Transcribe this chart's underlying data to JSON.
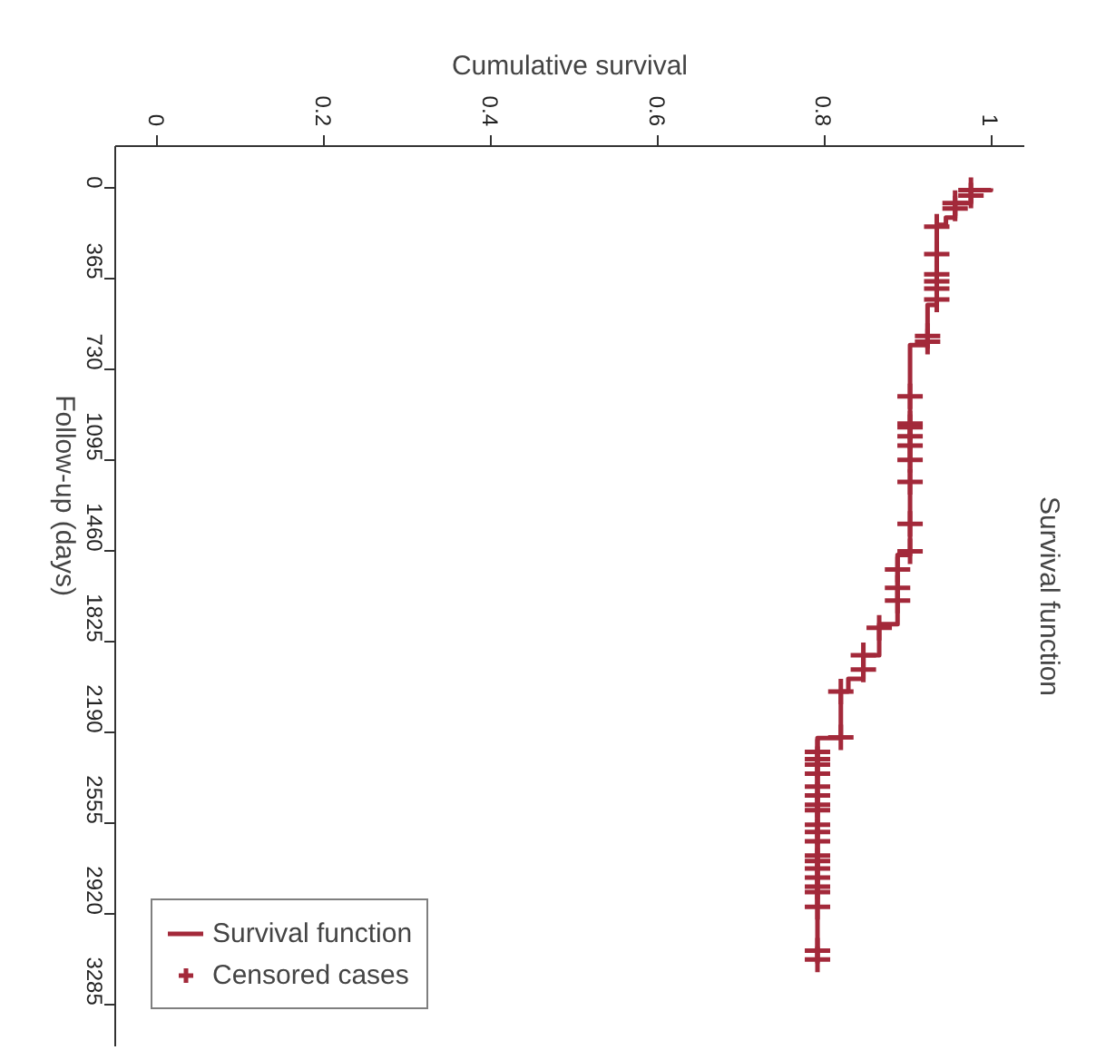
{
  "chart_data": {
    "type": "step",
    "orientation": "horizontal",
    "title": "Survival function",
    "xlabel": "Cumulative survival",
    "ylabel": "Follow-up (days)",
    "xlim": [
      -0.05,
      1.04
    ],
    "xticks": [
      0,
      0.2,
      0.4,
      0.6,
      0.8,
      1
    ],
    "ylim": [
      3450,
      -170
    ],
    "yticks": [
      0,
      365,
      730,
      1095,
      1460,
      1825,
      2190,
      2555,
      2920,
      3285
    ],
    "grid": false,
    "legend": "bottom left",
    "series": [
      {
        "name": "Survival function",
        "color": "#a3293a",
        "x": [
          0,
          7,
          59,
          117,
          147,
          469,
          630,
          1474,
          1752,
          1877,
          1972,
          2023,
          2210,
          3101
        ],
        "values": [
          1,
          0.976,
          0.957,
          0.946,
          0.935,
          0.924,
          0.903,
          0.888,
          0.866,
          0.847,
          0.829,
          0.82,
          0.792,
          0.792
        ]
      },
      {
        "name": "Censored cases",
        "type": "scatter",
        "marker": "cross",
        "color": "#a3293a",
        "x": [
          7,
          29,
          59,
          81,
          154,
          264,
          345,
          374,
          403,
          447,
          594,
          616,
          836,
          946,
          960,
          997,
          1034,
          1092,
          1180,
          1349,
          1459,
          1532,
          1606,
          1657,
          1767,
          1877,
          1935,
          2023,
          2207,
          2266,
          2295,
          2317,
          2353,
          2405,
          2441,
          2478,
          2500,
          2559,
          2588,
          2625,
          2683,
          2705,
          2735,
          2771,
          2808,
          2830,
          2889,
          3065,
          3101
        ],
        "values": [
          0.976,
          0.976,
          0.957,
          0.957,
          0.935,
          0.935,
          0.935,
          0.935,
          0.935,
          0.935,
          0.924,
          0.924,
          0.903,
          0.903,
          0.903,
          0.903,
          0.903,
          0.903,
          0.903,
          0.903,
          0.903,
          0.888,
          0.888,
          0.888,
          0.866,
          0.847,
          0.847,
          0.82,
          0.82,
          0.792,
          0.792,
          0.792,
          0.792,
          0.792,
          0.792,
          0.792,
          0.792,
          0.792,
          0.792,
          0.792,
          0.792,
          0.792,
          0.792,
          0.792,
          0.792,
          0.792,
          0.792,
          0.792,
          0.792
        ]
      }
    ]
  }
}
